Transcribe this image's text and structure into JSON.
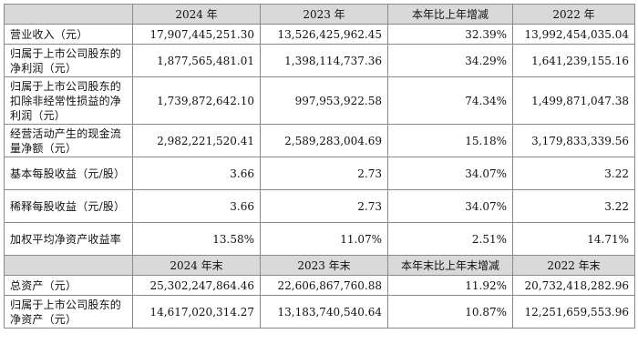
{
  "header1": [
    "",
    "2024 年",
    "2023 年",
    "本年比上年增减",
    "2022 年"
  ],
  "header2": [
    "",
    "2024 年末",
    "2023 年末",
    "本年末比上年末增减",
    "2022 年末"
  ],
  "rows1": [
    {
      "label": "营业收入（元）",
      "values": [
        "17,907,445,251.30",
        "13,526,425,962.45",
        "32.39%",
        "13,992,454,035.04"
      ]
    },
    {
      "label": "归属于上市公司股东的净利润（元）",
      "values": [
        "1,877,565,481.01",
        "1,398,114,737.36",
        "34.29%",
        "1,641,239,155.16"
      ]
    },
    {
      "label": "归属于上市公司股东的扣除非经常性损益的净利润（元）",
      "values": [
        "1,739,872,642.10",
        "997,953,922.58",
        "74.34%",
        "1,499,871,047.38"
      ]
    },
    {
      "label": "经营活动产生的现金流量净额（元）",
      "values": [
        "2,982,221,520.41",
        "2,589,283,004.69",
        "15.18%",
        "3,179,833,339.56"
      ]
    },
    {
      "label": "基本每股收益（元/股）",
      "values": [
        "3.66",
        "2.73",
        "34.07%",
        "3.22"
      ]
    },
    {
      "label": "稀释每股收益（元/股）",
      "values": [
        "3.66",
        "2.73",
        "34.07%",
        "3.22"
      ]
    },
    {
      "label": "加权平均净资产收益率",
      "values": [
        "13.58%",
        "11.07%",
        "2.51%",
        "14.71%"
      ]
    }
  ],
  "rows2": [
    {
      "label": "总资产（元）",
      "values": [
        "25,302,247,864.46",
        "22,606,867,760.88",
        "11.92%",
        "20,732,418,282.96"
      ]
    },
    {
      "label": "归属于上市公司股东的净资产（元）",
      "values": [
        "14,617,020,314.27",
        "13,183,740,540.64",
        "10.87%",
        "12,251,659,553.96"
      ]
    }
  ]
}
